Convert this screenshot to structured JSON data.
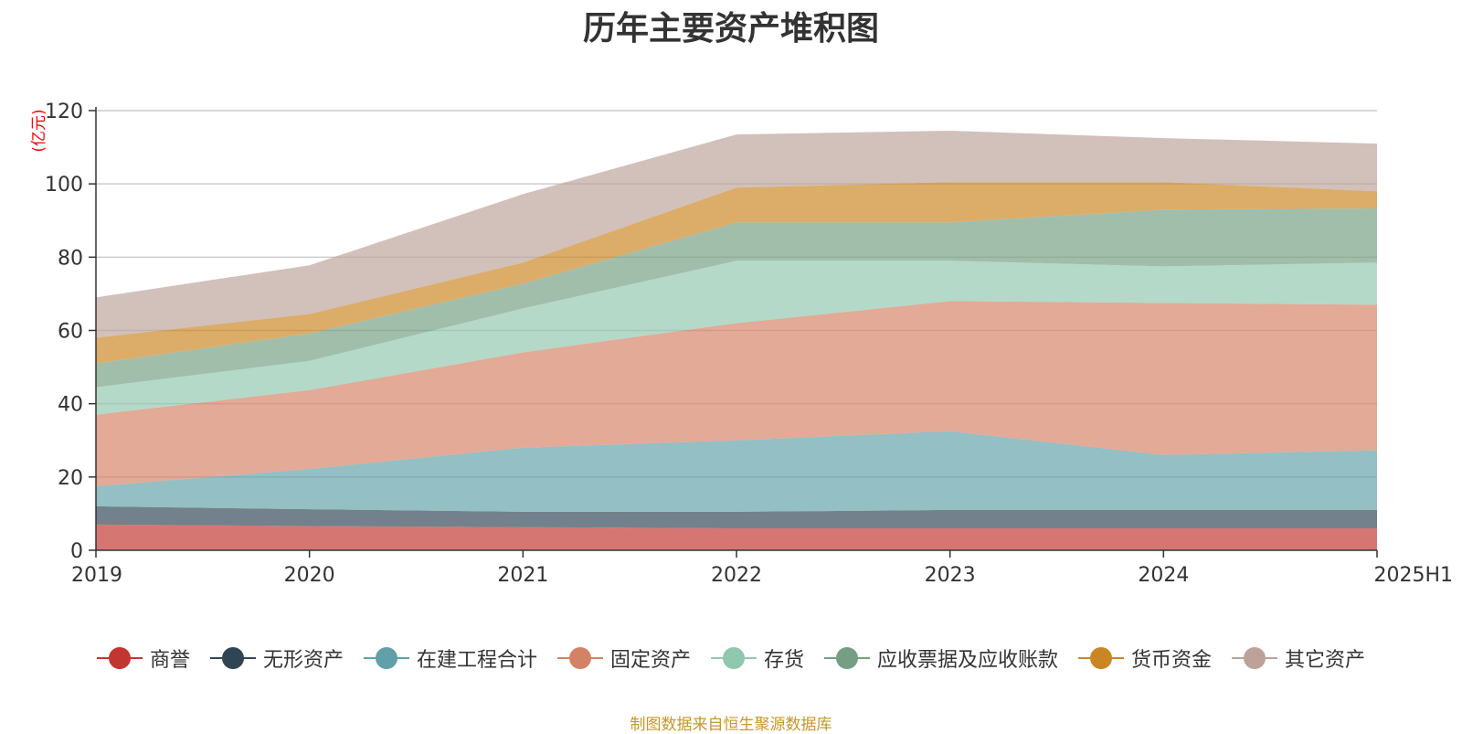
{
  "chart_data": {
    "type": "area",
    "stacked": true,
    "title": "历年主要资产堆积图",
    "ylabel": "(亿元)",
    "x": [
      "2019",
      "2020",
      "2021",
      "2022",
      "2023",
      "2024",
      "2025H1"
    ],
    "ylim": [
      0,
      120
    ],
    "yticks": [
      0,
      20,
      40,
      60,
      80,
      100,
      120
    ],
    "grid": true,
    "legend_position": "bottom",
    "series": [
      {
        "name": "商誉",
        "color": "#c23531",
        "values": [
          7.0,
          6.6,
          6.3,
          6.0,
          6.0,
          6.0,
          6.0
        ]
      },
      {
        "name": "无形资产",
        "color": "#2f4554",
        "values": [
          5.0,
          4.6,
          4.2,
          4.5,
          5.0,
          5.0,
          5.0
        ]
      },
      {
        "name": "在建工程合计",
        "color": "#61a0a8",
        "values": [
          5.5,
          11.0,
          17.5,
          19.5,
          21.5,
          15.0,
          16.3
        ]
      },
      {
        "name": "固定资产",
        "color": "#d48265",
        "values": [
          19.5,
          21.5,
          26.0,
          32.0,
          35.5,
          41.5,
          39.7
        ]
      },
      {
        "name": "存货",
        "color": "#91c7ae",
        "values": [
          7.5,
          8.0,
          12.0,
          17.0,
          11.0,
          10.0,
          11.5
        ]
      },
      {
        "name": "应收票据及应收账款",
        "color": "#749f83",
        "values": [
          6.5,
          7.5,
          6.8,
          10.5,
          10.5,
          15.5,
          14.8
        ]
      },
      {
        "name": "货币资金",
        "color": "#ca8622",
        "values": [
          7.0,
          5.3,
          5.7,
          9.5,
          11.0,
          7.5,
          4.7
        ]
      },
      {
        "name": "其它资产",
        "color": "#bda29a",
        "values": [
          11.0,
          13.3,
          18.7,
          14.5,
          14.0,
          12.0,
          13.0
        ]
      }
    ]
  },
  "footer": "制图数据来自恒生聚源数据库"
}
